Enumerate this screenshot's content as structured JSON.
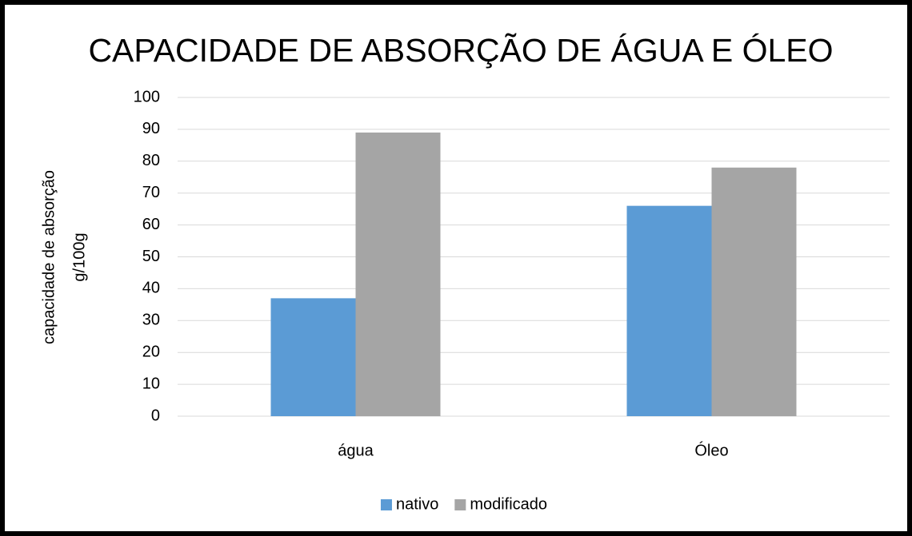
{
  "chart_data": {
    "type": "bar",
    "title": "CAPACIDADE DE ABSORÇÃO DE ÁGUA E ÓLEO",
    "ylabel": [
      "capacidade de absorção",
      "g/100g"
    ],
    "categories": [
      "água",
      "Óleo"
    ],
    "series": [
      {
        "name": "nativo",
        "color": "#5b9bd5",
        "values": [
          37,
          66
        ]
      },
      {
        "name": "modificado",
        "color": "#a5a5a5",
        "values": [
          89,
          78
        ]
      }
    ],
    "ylim": [
      0,
      100
    ],
    "yticks": [
      0,
      10,
      20,
      30,
      40,
      50,
      60,
      70,
      80,
      90,
      100
    ],
    "grid": true,
    "legend": "bottom"
  }
}
